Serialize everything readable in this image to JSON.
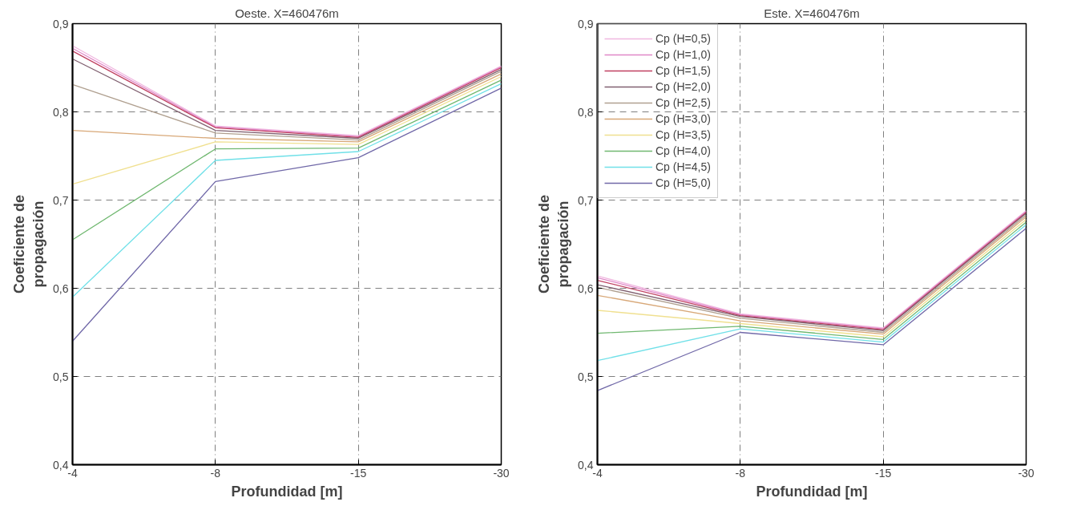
{
  "chart_data": [
    {
      "type": "line",
      "title": "Oeste. X=460476m",
      "xlabel": "Profundidad [m]",
      "ylabel": "Coeficiente de\npropagación",
      "categories": [
        "-4",
        "-8",
        "-15",
        "-30"
      ],
      "ylim": [
        0.4,
        0.9
      ],
      "yticks": [
        {
          "value": 0.4,
          "label": "0,4"
        },
        {
          "value": 0.5,
          "label": "0,5"
        },
        {
          "value": 0.6,
          "label": "0,6"
        },
        {
          "value": 0.7,
          "label": "0,7"
        },
        {
          "value": 0.8,
          "label": "0,8"
        },
        {
          "value": 0.9,
          "label": "0,9"
        }
      ],
      "grid": true,
      "legend": false,
      "series": [
        {
          "color": "#f0b8e0",
          "values": [
            0.875,
            0.784,
            0.773,
            0.852
          ]
        },
        {
          "color": "#e088c8",
          "values": [
            0.872,
            0.783,
            0.772,
            0.851
          ]
        },
        {
          "color": "#c04060",
          "values": [
            0.869,
            0.782,
            0.771,
            0.85
          ]
        },
        {
          "color": "#806070",
          "values": [
            0.86,
            0.779,
            0.77,
            0.848
          ]
        },
        {
          "color": "#b0a090",
          "values": [
            0.831,
            0.776,
            0.768,
            0.846
          ]
        },
        {
          "color": "#d8a878",
          "values": [
            0.779,
            0.77,
            0.766,
            0.843
          ]
        },
        {
          "color": "#f0e090",
          "values": [
            0.718,
            0.766,
            0.763,
            0.84
          ]
        },
        {
          "color": "#70b870",
          "values": [
            0.655,
            0.758,
            0.759,
            0.836
          ]
        },
        {
          "color": "#70e0e8",
          "values": [
            0.59,
            0.745,
            0.755,
            0.832
          ]
        },
        {
          "color": "#7068a8",
          "values": [
            0.54,
            0.721,
            0.748,
            0.827
          ]
        }
      ]
    },
    {
      "type": "line",
      "title": "Este. X=460476m",
      "xlabel": "Profundidad [m]",
      "ylabel": "Coeficiente de\npropagación",
      "categories": [
        "-4",
        "-8",
        "-15",
        "-30"
      ],
      "ylim": [
        0.4,
        0.9
      ],
      "yticks": [
        {
          "value": 0.4,
          "label": "0,4"
        },
        {
          "value": 0.5,
          "label": "0,5"
        },
        {
          "value": 0.6,
          "label": "0,6"
        },
        {
          "value": 0.7,
          "label": "0,7"
        },
        {
          "value": 0.8,
          "label": "0,8"
        },
        {
          "value": 0.9,
          "label": "0,9"
        }
      ],
      "grid": true,
      "legend": "top left",
      "series": [
        {
          "name": "Cp (H=0,5)",
          "color": "#f0b8e0",
          "values": [
            0.614,
            0.571,
            0.555,
            0.688
          ]
        },
        {
          "name": "Cp (H=1,0)",
          "color": "#e088c8",
          "values": [
            0.612,
            0.57,
            0.554,
            0.687
          ]
        },
        {
          "name": "Cp (H=1,5)",
          "color": "#c04060",
          "values": [
            0.609,
            0.569,
            0.553,
            0.686
          ]
        },
        {
          "name": "Cp (H=2,0)",
          "color": "#806070",
          "values": [
            0.604,
            0.568,
            0.552,
            0.685
          ]
        },
        {
          "name": "Cp (H=2,5)",
          "color": "#b0a090",
          "values": [
            0.601,
            0.566,
            0.55,
            0.683
          ]
        },
        {
          "name": "Cp (H=3,0)",
          "color": "#d8a878",
          "values": [
            0.592,
            0.563,
            0.548,
            0.681
          ]
        },
        {
          "name": "Cp (H=3,5)",
          "color": "#f0e090",
          "values": [
            0.575,
            0.56,
            0.545,
            0.678
          ]
        },
        {
          "name": "Cp (H=4,0)",
          "color": "#70b870",
          "values": [
            0.549,
            0.557,
            0.542,
            0.675
          ]
        },
        {
          "name": "Cp (H=4,5)",
          "color": "#70e0e8",
          "values": [
            0.518,
            0.554,
            0.539,
            0.672
          ]
        },
        {
          "name": "Cp (H=5,0)",
          "color": "#7068a8",
          "values": [
            0.484,
            0.55,
            0.536,
            0.668
          ]
        }
      ]
    }
  ]
}
